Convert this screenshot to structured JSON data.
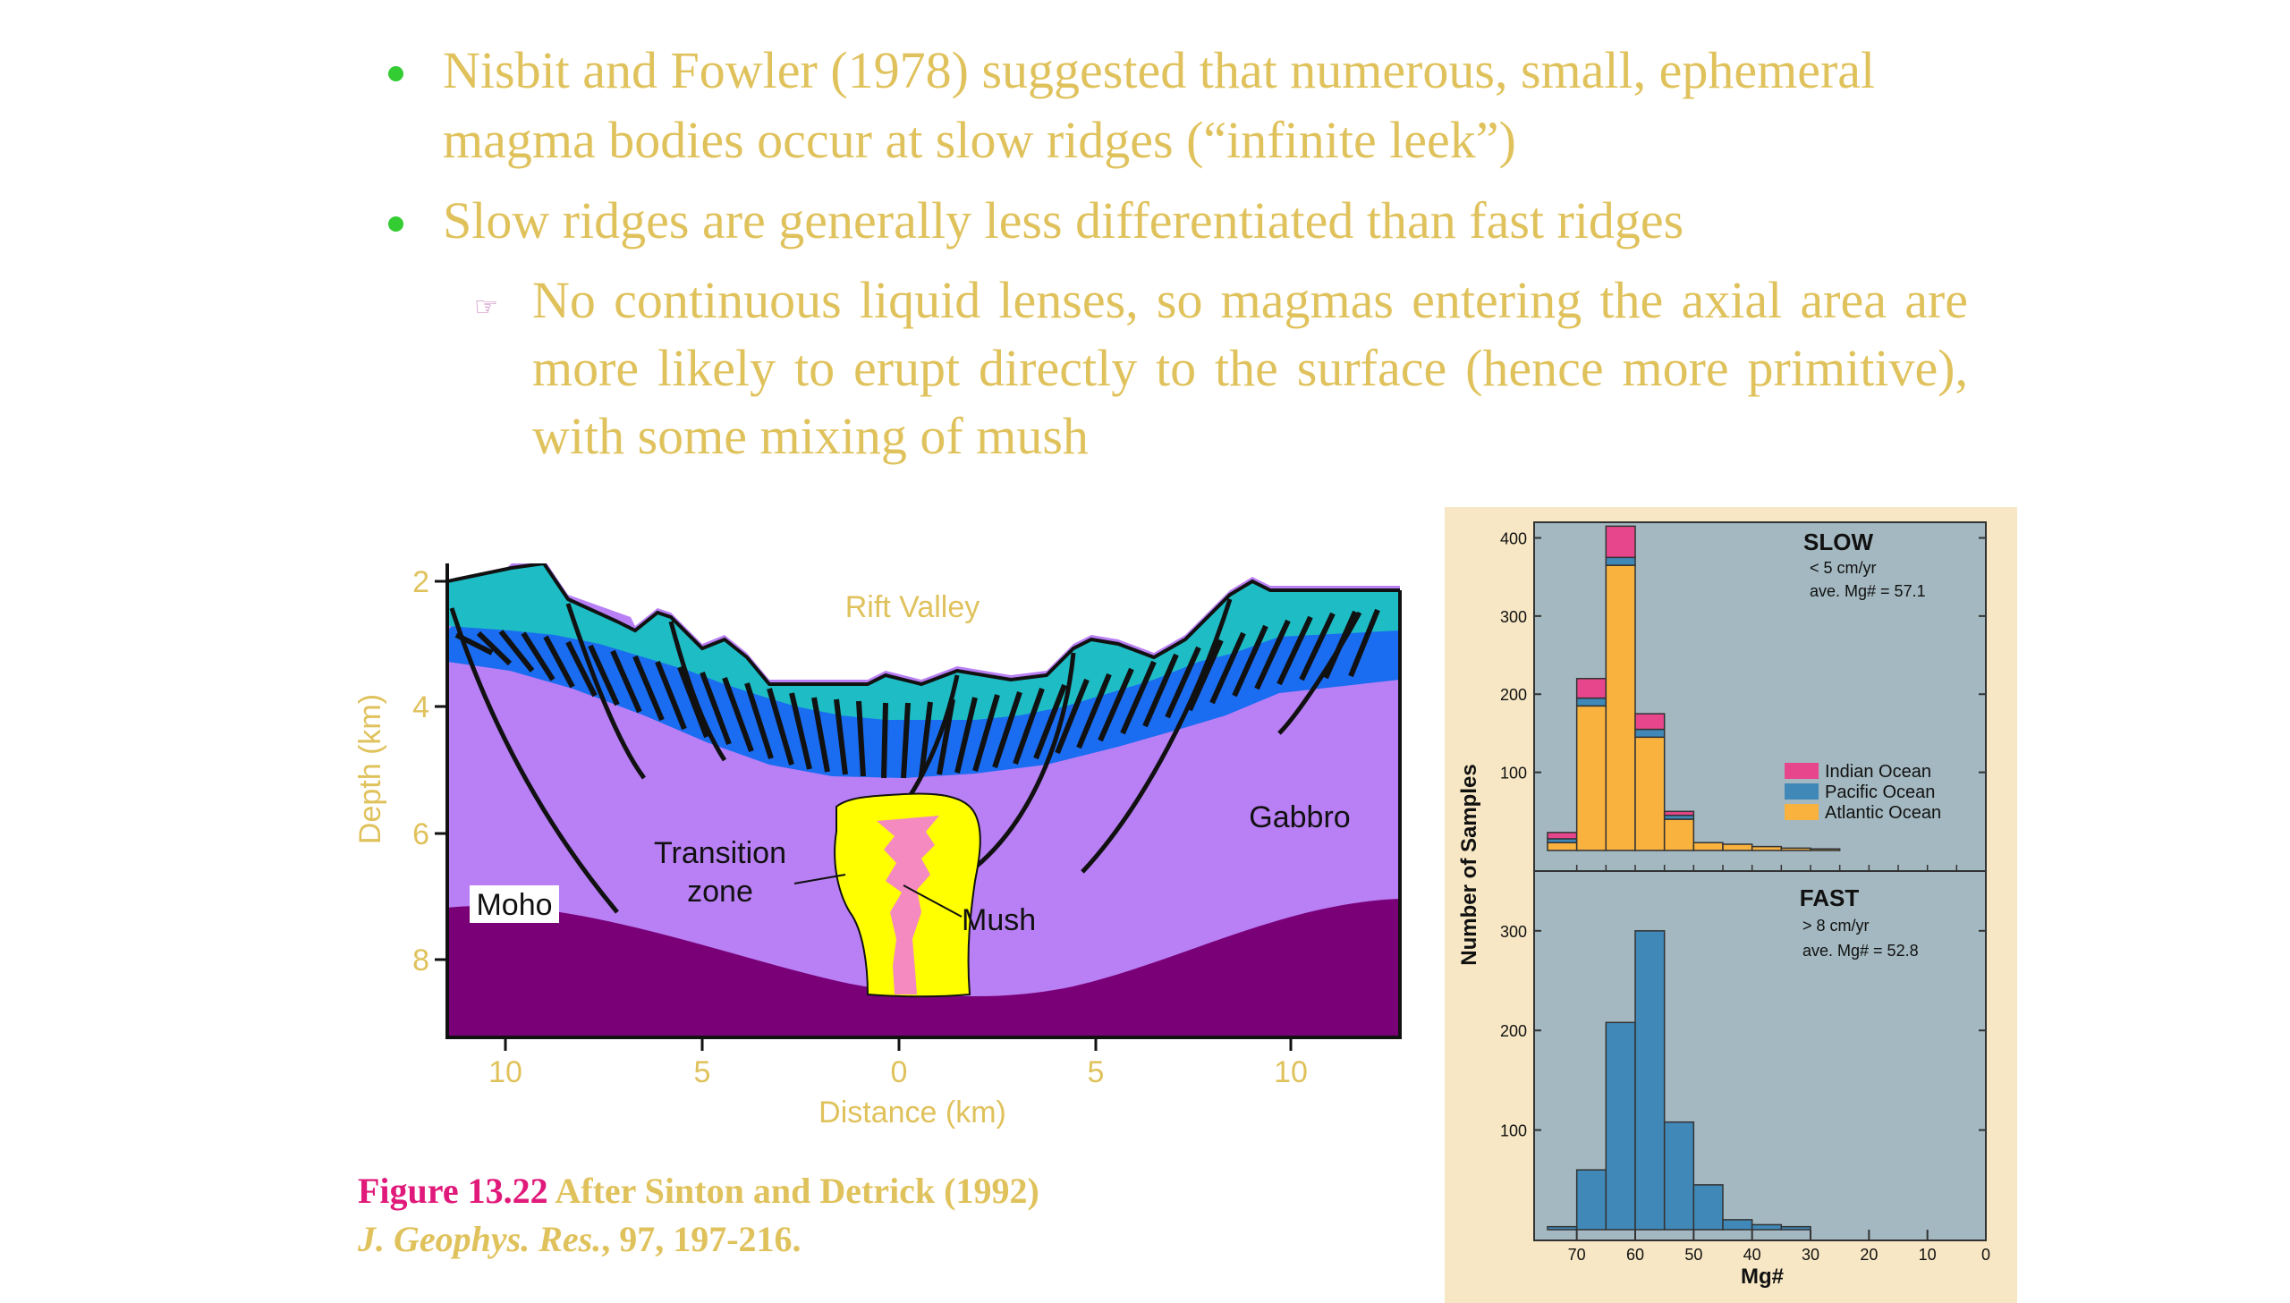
{
  "bullets": [
    {
      "text": "Nisbit and Fowler (1978) suggested that numerous, small, ephemeral magma bodies occur at slow ridges (“infinite leek”)"
    },
    {
      "text": "Slow ridges are generally less differentiated than fast ridges"
    }
  ],
  "sub_bullet": {
    "text": "No continuous liquid lenses, so magmas entering the axial area are more likely to erupt directly to the surface (hence more primitive), with some mixing of mush"
  },
  "cross_section": {
    "ylabel": "Depth (km)",
    "xlabel": "Distance (km)",
    "y_ticks": [
      "2",
      "4",
      "6",
      "8"
    ],
    "x_ticks": [
      "10",
      "5",
      "0",
      "5",
      "10"
    ],
    "labels": {
      "rift_valley": "Rift Valley",
      "gabbro": "Gabbro",
      "transition_1": "Transition",
      "transition_2": "zone",
      "mush": "Mush",
      "moho": "Moho"
    },
    "colors": {
      "dikes_top": "#1ebcc4",
      "dikes_blue": "#1a6cf0",
      "gabbro": "#b97ff5",
      "mantle": "#7a0078",
      "transition": "#ffff00",
      "mush": "#f58ac0",
      "text": "#e0c25c"
    }
  },
  "chart_data": [
    {
      "type": "bar",
      "title": "SLOW",
      "subtitle": "< 5 cm/yr",
      "annotation": "ave. Mg# = 57.1",
      "xlabel": "Mg#",
      "ylabel": "Number of Samples",
      "x_reversed": true,
      "xlim": [
        75,
        0
      ],
      "ylim": [
        0,
        420
      ],
      "y_ticks": [
        100,
        200,
        300,
        400
      ],
      "bin_width": 5,
      "bins_left": [
        70,
        65,
        60,
        55,
        50,
        45,
        40,
        35,
        30,
        25
      ],
      "series": [
        {
          "name": "Atlantic Ocean",
          "color": "#f9b23e",
          "values": [
            10,
            185,
            365,
            145,
            40,
            10,
            8,
            5,
            3,
            2
          ]
        },
        {
          "name": "Pacific Ocean",
          "color": "#3f88b8",
          "values": [
            5,
            10,
            10,
            10,
            5,
            0,
            0,
            0,
            0,
            0
          ]
        },
        {
          "name": "Indian Ocean",
          "color": "#e8468c",
          "values": [
            8,
            25,
            40,
            20,
            5,
            0,
            0,
            0,
            0,
            0
          ]
        }
      ],
      "legend": "right"
    },
    {
      "type": "bar",
      "title": "FAST",
      "subtitle": "> 8 cm/yr",
      "annotation": "ave. Mg# = 52.8",
      "xlabel": "Mg#",
      "ylabel": "Number of Samples",
      "x_reversed": true,
      "xlim": [
        75,
        0
      ],
      "ylim": [
        0,
        360
      ],
      "y_ticks": [
        100,
        200,
        300
      ],
      "x_ticks": [
        "70",
        "60",
        "50",
        "40",
        "30",
        "20",
        "10",
        "0"
      ],
      "bin_width": 5,
      "bins_left": [
        70,
        65,
        60,
        55,
        50,
        45,
        40,
        35,
        30
      ],
      "series": [
        {
          "name": "Pacific Ocean",
          "color": "#3f88b8",
          "values": [
            3,
            60,
            208,
            300,
            108,
            45,
            10,
            5,
            3
          ]
        }
      ]
    }
  ],
  "caption": {
    "fignum": "Figure 13.22",
    "line1": " After Sinton and Detrick (1992)",
    "journal": "J. Geophys. Res.",
    "line2": ", 97, 197-216."
  }
}
